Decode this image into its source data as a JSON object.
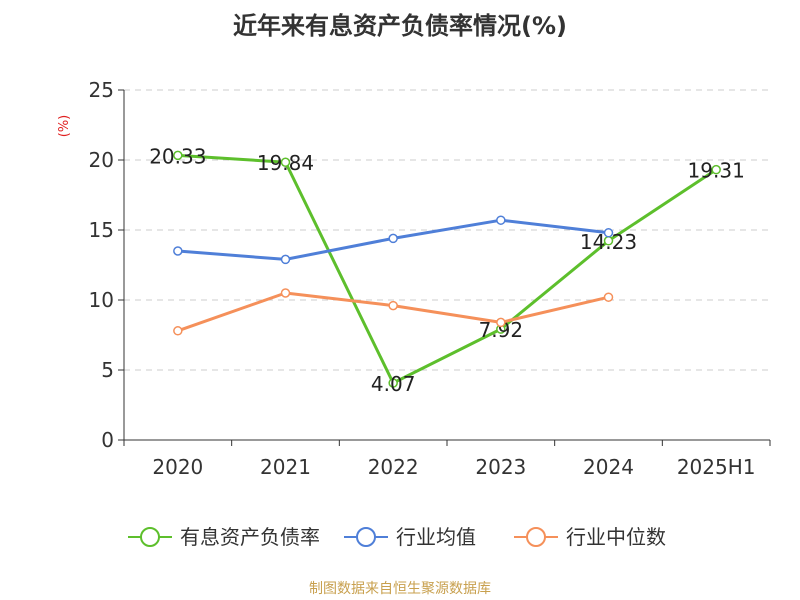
{
  "chart_data": {
    "type": "line",
    "title": "近年来有息资产负债率情况(%)",
    "ylabel": "(%)",
    "ylim": [
      0,
      25
    ],
    "yticks": [
      0,
      5,
      10,
      15,
      20,
      25
    ],
    "categories": [
      "2020",
      "2021",
      "2022",
      "2023",
      "2024",
      "2025H1"
    ],
    "grid": true,
    "legend_position": "bottom",
    "series": [
      {
        "name": "有息资产负债率",
        "color": "#5dbf2c",
        "show_labels": true,
        "values": [
          20.33,
          19.84,
          4.07,
          7.92,
          14.23,
          19.31
        ],
        "labels": [
          "20.33",
          "19.84",
          "4.07",
          "7.92",
          "14.23",
          "19.31"
        ]
      },
      {
        "name": "行业均值",
        "color": "#4f7fd8",
        "show_labels": false,
        "values": [
          13.5,
          12.9,
          14.4,
          15.7,
          14.8,
          null
        ]
      },
      {
        "name": "行业中位数",
        "color": "#f5905a",
        "show_labels": false,
        "values": [
          7.8,
          10.5,
          9.6,
          8.4,
          10.2,
          null
        ]
      }
    ]
  },
  "source": "制图数据来自恒生聚源数据库"
}
